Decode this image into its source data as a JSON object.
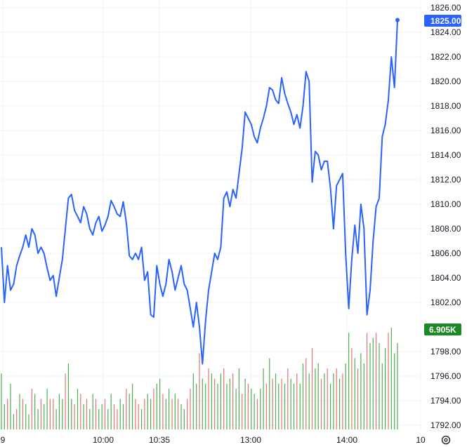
{
  "chart_data": {
    "type": "line",
    "title": "",
    "xlabel": "",
    "ylabel": "",
    "ylim": [
      1791.5,
      1826.5
    ],
    "y_ticks": [
      "1826.00",
      "1824.00",
      "1822.00",
      "1820.00",
      "1818.00",
      "1816.00",
      "1814.00",
      "1812.00",
      "1810.00",
      "1808.00",
      "1806.00",
      "1804.00",
      "1802.00",
      "1798.00",
      "1796.00",
      "1794.00",
      "1792.00"
    ],
    "x_ticks": [
      "9",
      "10:00",
      "10:35",
      "13:00",
      "14:00",
      "10"
    ],
    "price_badge": "1825.00",
    "volume_badge": "6.905K",
    "grid": true,
    "colors": {
      "line": "#2962ff",
      "up": "#26a69a",
      "down": "#ef5350",
      "vol_up": "#4caf50",
      "vol_down": "#e57373",
      "badge_price": "#2962ff",
      "badge_vol": "#1b8a26"
    },
    "price_series": [
      1806.5,
      1802,
      1805,
      1803,
      1803.5,
      1805,
      1805.8,
      1806.5,
      1807.5,
      1806.5,
      1808,
      1807.5,
      1806,
      1806.5,
      1806,
      1804.8,
      1803.8,
      1804.2,
      1802.5,
      1804,
      1805.5,
      1808,
      1810.5,
      1810.8,
      1809.5,
      1809,
      1808.5,
      1809.8,
      1809.2,
      1808,
      1807.5,
      1808.5,
      1809,
      1807.8,
      1808.3,
      1809,
      1810.3,
      1809.8,
      1809.2,
      1809,
      1810.2,
      1808.5,
      1805.8,
      1805.5,
      1806,
      1805.5,
      1806.5,
      1803.8,
      1804.5,
      1801,
      1800.8,
      1805,
      1803.5,
      1802.5,
      1803.5,
      1805.5,
      1804.5,
      1803,
      1804,
      1805,
      1803.5,
      1803,
      1801.5,
      1800,
      1802,
      1800,
      1797,
      1800.5,
      1803,
      1804.5,
      1806,
      1805.5,
      1806.5,
      1810.5,
      1811,
      1809.8,
      1811.2,
      1810.5,
      1812.5,
      1814.5,
      1817.5,
      1817,
      1816.5,
      1815.5,
      1815,
      1816.2,
      1817,
      1818,
      1819.5,
      1819.3,
      1818.5,
      1818.2,
      1820.3,
      1819,
      1818.2,
      1817.5,
      1816.5,
      1817.3,
      1816.2,
      1818,
      1820.8,
      1820,
      1811.8,
      1814.3,
      1814,
      1812.8,
      1813.5,
      1813.5,
      1811.3,
      1808,
      1811.5,
      1812,
      1812.5,
      1806,
      1801.5,
      1805.5,
      1808.3,
      1806,
      1810,
      1808,
      1801,
      1803,
      1807,
      1809.8,
      1810.5,
      1815.5,
      1816.5,
      1818.5,
      1822,
      1819.5,
      1825
    ],
    "volume_series": [
      0.55,
      0.25,
      0.3,
      0.45,
      0.15,
      0.2,
      0.35,
      0.3,
      0.25,
      0.15,
      0.4,
      0.35,
      0.2,
      0.3,
      0.25,
      0.4,
      0.3,
      0.3,
      0.2,
      0.35,
      0.3,
      0.55,
      0.65,
      0.3,
      0.25,
      0.4,
      0.35,
      0.25,
      0.3,
      0.2,
      0.35,
      0.3,
      0.2,
      0.25,
      0.3,
      0.2,
      0.35,
      0.25,
      0.2,
      0.3,
      0.25,
      0.4,
      0.35,
      0.45,
      0.3,
      0.25,
      0.2,
      0.3,
      0.35,
      0.3,
      0.4,
      0.45,
      0.5,
      0.35,
      0.3,
      0.4,
      0.3,
      0.35,
      0.3,
      0.25,
      0.2,
      0.3,
      0.4,
      0.55,
      0.45,
      0.75,
      0.5,
      0.45,
      0.6,
      0.55,
      0.5,
      0.45,
      0.55,
      0.6,
      0.45,
      0.5,
      0.55,
      0.4,
      0.6,
      0.35,
      0.5,
      0.45,
      0.4,
      0.35,
      0.3,
      0.4,
      0.6,
      0.45,
      0.7,
      0.5,
      0.55,
      0.45,
      0.5,
      0.45,
      0.6,
      0.5,
      0.45,
      0.55,
      0.45,
      0.65,
      0.7,
      0.55,
      0.8,
      0.6,
      0.65,
      0.5,
      0.55,
      0.6,
      0.45,
      0.55,
      0.6,
      0.5,
      0.55,
      0.65,
      0.95,
      0.8,
      0.7,
      0.6,
      0.75,
      0.65,
      0.95,
      0.85,
      0.9,
      0.95,
      0.85,
      0.65,
      0.8,
      0.95,
      1.0,
      0.75,
      0.85
    ],
    "volume_colors": [
      "up",
      "up",
      "down",
      "up",
      "up",
      "down",
      "up",
      "down",
      "up",
      "up",
      "down",
      "up",
      "up",
      "down",
      "up",
      "up",
      "down",
      "down",
      "up",
      "up",
      "up",
      "down",
      "up",
      "up",
      "down",
      "up",
      "down",
      "up",
      "down",
      "up",
      "up",
      "down",
      "up",
      "up",
      "down",
      "up",
      "up",
      "down",
      "down",
      "up",
      "up",
      "down",
      "up",
      "up",
      "down",
      "down",
      "up",
      "down",
      "up",
      "up",
      "down",
      "up",
      "up",
      "down",
      "up",
      "up",
      "down",
      "up",
      "down",
      "up",
      "up",
      "down",
      "down",
      "up",
      "up",
      "down",
      "up",
      "up",
      "down",
      "up",
      "down",
      "up",
      "up",
      "down",
      "up",
      "up",
      "down",
      "up",
      "up",
      "down",
      "up",
      "down",
      "up",
      "up",
      "down",
      "up",
      "up",
      "down",
      "up",
      "down",
      "up",
      "up",
      "down",
      "up",
      "down",
      "up",
      "up",
      "down",
      "up",
      "up",
      "down",
      "up",
      "down",
      "up",
      "up",
      "down",
      "up",
      "down",
      "up",
      "up",
      "down",
      "up",
      "down",
      "up",
      "up",
      "down",
      "up",
      "down",
      "up",
      "up",
      "down",
      "up",
      "up",
      "down",
      "up",
      "up",
      "up",
      "down",
      "up",
      "up",
      "up"
    ]
  },
  "toolbar": {
    "settings_icon": "gear-icon"
  }
}
